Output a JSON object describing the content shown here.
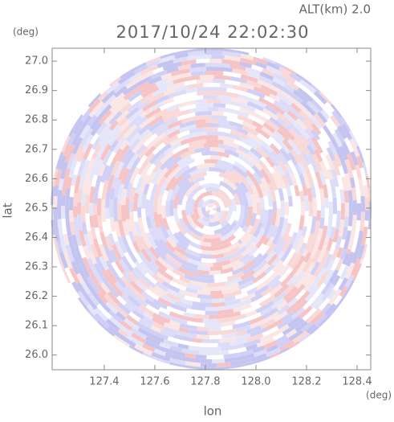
{
  "chart_data": {
    "type": "ppi",
    "title": "2017/10/24 22:02:30",
    "altitude_label": "ALT(km) 2.0",
    "x_label": "lon",
    "y_label": "lat",
    "x_unit": "(deg)",
    "y_unit": "(deg)",
    "xlim": [
      127.194,
      128.454
    ],
    "ylim": [
      25.95,
      27.044
    ],
    "xticks": [
      127.4,
      127.6,
      127.8,
      {
        "value": 128,
        "label": "128.0"
      },
      128.2,
      128.4
    ],
    "yticks": [
      {
        "value": 26,
        "label": "26.0"
      },
      26.1,
      26.2,
      26.3,
      26.4,
      26.5,
      26.6,
      26.7,
      26.8,
      26.9,
      {
        "value": 27,
        "label": "27.0"
      }
    ]
  }
}
